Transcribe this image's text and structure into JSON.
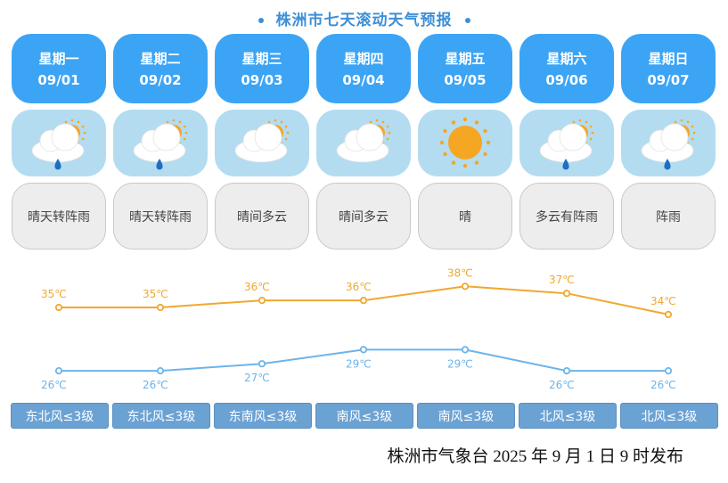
{
  "title": "株洲市七天滚动天气预报",
  "days": [
    {
      "weekday": "星期一",
      "date": "09/01",
      "icon": "partly-cloudy-rain-icon",
      "weather": "晴天转阵雨",
      "wind": "东北风≤3级"
    },
    {
      "weekday": "星期二",
      "date": "09/02",
      "icon": "partly-cloudy-rain-icon",
      "weather": "晴天转阵雨",
      "wind": "东北风≤3级"
    },
    {
      "weekday": "星期三",
      "date": "09/03",
      "icon": "partly-cloudy-icon",
      "weather": "晴间多云",
      "wind": "东南风≤3级"
    },
    {
      "weekday": "星期四",
      "date": "09/04",
      "icon": "partly-cloudy-icon",
      "weather": "晴间多云",
      "wind": "南风≤3级"
    },
    {
      "weekday": "星期五",
      "date": "09/05",
      "icon": "sun-icon",
      "weather": "晴",
      "wind": "南风≤3级"
    },
    {
      "weekday": "星期六",
      "date": "09/06",
      "icon": "partly-cloudy-rain-icon",
      "weather": "多云有阵雨",
      "wind": "北风≤3级"
    },
    {
      "weekday": "星期日",
      "date": "09/07",
      "icon": "partly-cloudy-rain-icon",
      "weather": "阵雨",
      "wind": "北风≤3级"
    }
  ],
  "chart_data": {
    "type": "line",
    "categories": [
      "09/01",
      "09/02",
      "09/03",
      "09/04",
      "09/05",
      "09/06",
      "09/07"
    ],
    "series": [
      {
        "values": [
          35,
          35,
          36,
          36,
          38,
          37,
          34
        ],
        "labels": [
          "35℃",
          "35℃",
          "36℃",
          "36℃",
          "38℃",
          "37℃",
          "34℃"
        ],
        "color": "#f0a830"
      },
      {
        "values": [
          26,
          26,
          27,
          29,
          29,
          26,
          26
        ],
        "labels": [
          "26℃",
          "26℃",
          "27℃",
          "29℃",
          "29℃",
          "26℃",
          "26℃"
        ],
        "color": "#6cb4ea"
      }
    ]
  },
  "footer": "株洲市气象台 2025 年 9 月 1 日 9 时发布"
}
